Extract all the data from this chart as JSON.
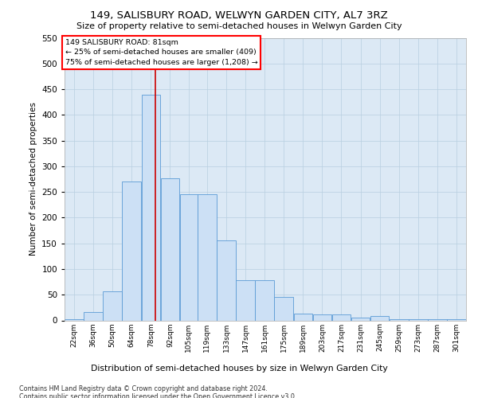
{
  "title": "149, SALISBURY ROAD, WELWYN GARDEN CITY, AL7 3RZ",
  "subtitle": "Size of property relative to semi-detached houses in Welwyn Garden City",
  "xlabel": "Distribution of semi-detached houses by size in Welwyn Garden City",
  "ylabel": "Number of semi-detached properties",
  "footnote1": "Contains HM Land Registry data © Crown copyright and database right 2024.",
  "footnote2": "Contains public sector information licensed under the Open Government Licence v3.0.",
  "annotation_title": "149 SALISBURY ROAD: 81sqm",
  "annotation_line1": "← 25% of semi-detached houses are smaller (409)",
  "annotation_line2": "75% of semi-detached houses are larger (1,208) →",
  "bar_color": "#cce0f5",
  "bar_edge_color": "#5b9bd5",
  "vline_color": "#cc0000",
  "vline_x": 81,
  "categories": [
    "22sqm",
    "36sqm",
    "50sqm",
    "64sqm",
    "78sqm",
    "92sqm",
    "105sqm",
    "119sqm",
    "133sqm",
    "147sqm",
    "161sqm",
    "175sqm",
    "189sqm",
    "203sqm",
    "217sqm",
    "231sqm",
    "245sqm",
    "259sqm",
    "273sqm",
    "287sqm",
    "301sqm"
  ],
  "bin_edges": [
    15,
    29,
    43,
    57,
    71,
    85,
    99,
    112,
    126,
    140,
    154,
    168,
    182,
    196,
    210,
    224,
    238,
    252,
    266,
    280,
    294,
    308
  ],
  "values": [
    3,
    17,
    57,
    270,
    440,
    277,
    246,
    245,
    155,
    78,
    78,
    45,
    13,
    11,
    11,
    6,
    8,
    3,
    2,
    2,
    3
  ],
  "ylim": [
    0,
    550
  ],
  "yticks": [
    0,
    50,
    100,
    150,
    200,
    250,
    300,
    350,
    400,
    450,
    500,
    550
  ],
  "background_color": "#ffffff",
  "ax_facecolor": "#dce9f5",
  "grid_color": "#b8cfe0"
}
